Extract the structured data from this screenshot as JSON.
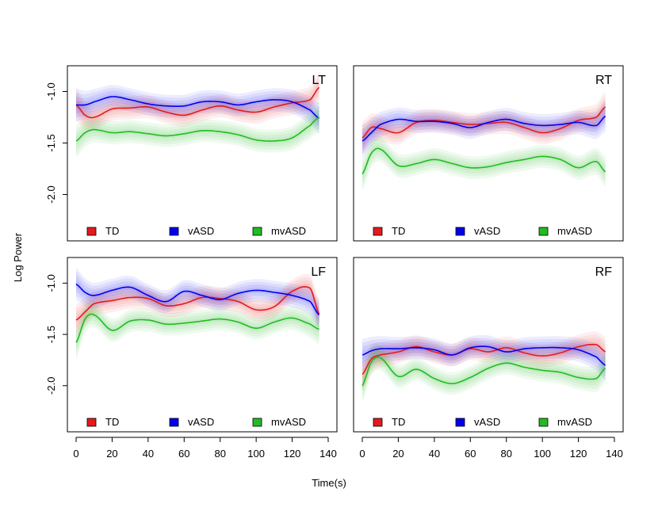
{
  "chart_data": {
    "type": "line",
    "xlabel": "Time(s)",
    "ylabel": "Log Power",
    "xlim": [
      0,
      140
    ],
    "ylim": [
      -2.45,
      -0.75
    ],
    "x_ticks": [
      0,
      20,
      40,
      60,
      80,
      100,
      120,
      140
    ],
    "y_ticks": [
      -2.0,
      -1.5,
      -1.0
    ],
    "y_tick_labels": [
      "-2.0",
      "-1.5",
      "-1.0"
    ],
    "legend": [
      {
        "label": "TD",
        "color": "#e41a1c"
      },
      {
        "label": "vASD",
        "color": "#0000ee"
      },
      {
        "label": "mvASD",
        "color": "#22bb22"
      }
    ],
    "grid": false,
    "shaded_bands": true,
    "panels": [
      {
        "label": "LT",
        "x": [
          0,
          5,
          10,
          20,
          30,
          40,
          50,
          60,
          70,
          80,
          90,
          100,
          110,
          120,
          130,
          135
        ],
        "series": [
          {
            "name": "TD",
            "values": [
              -1.13,
              -1.23,
              -1.25,
              -1.17,
              -1.16,
              -1.15,
              -1.2,
              -1.23,
              -1.18,
              -1.14,
              -1.18,
              -1.2,
              -1.15,
              -1.11,
              -1.08,
              -0.96
            ]
          },
          {
            "name": "vASD",
            "values": [
              -1.13,
              -1.13,
              -1.1,
              -1.05,
              -1.08,
              -1.12,
              -1.14,
              -1.14,
              -1.1,
              -1.1,
              -1.13,
              -1.1,
              -1.08,
              -1.1,
              -1.18,
              -1.26
            ]
          },
          {
            "name": "mvASD",
            "values": [
              -1.48,
              -1.4,
              -1.37,
              -1.4,
              -1.39,
              -1.41,
              -1.43,
              -1.41,
              -1.38,
              -1.39,
              -1.42,
              -1.47,
              -1.48,
              -1.45,
              -1.33,
              -1.25
            ]
          }
        ]
      },
      {
        "label": "RT",
        "x": [
          0,
          5,
          10,
          20,
          30,
          40,
          50,
          60,
          70,
          80,
          90,
          100,
          110,
          120,
          130,
          135
        ],
        "series": [
          {
            "name": "TD",
            "values": [
              -1.45,
              -1.35,
              -1.36,
              -1.4,
              -1.3,
              -1.28,
              -1.3,
              -1.32,
              -1.31,
              -1.3,
              -1.35,
              -1.4,
              -1.36,
              -1.28,
              -1.25,
              -1.15
            ]
          },
          {
            "name": "vASD",
            "values": [
              -1.48,
              -1.4,
              -1.32,
              -1.27,
              -1.29,
              -1.29,
              -1.31,
              -1.35,
              -1.3,
              -1.27,
              -1.31,
              -1.33,
              -1.32,
              -1.3,
              -1.33,
              -1.24
            ]
          },
          {
            "name": "mvASD",
            "values": [
              -1.8,
              -1.6,
              -1.56,
              -1.72,
              -1.7,
              -1.66,
              -1.7,
              -1.74,
              -1.73,
              -1.69,
              -1.66,
              -1.63,
              -1.66,
              -1.74,
              -1.68,
              -1.78
            ]
          }
        ]
      },
      {
        "label": "LF",
        "x": [
          0,
          5,
          10,
          20,
          30,
          40,
          50,
          60,
          70,
          80,
          90,
          100,
          110,
          120,
          130,
          135
        ],
        "series": [
          {
            "name": "TD",
            "values": [
              -1.36,
              -1.28,
              -1.2,
              -1.17,
              -1.14,
              -1.15,
              -1.22,
              -1.2,
              -1.14,
              -1.15,
              -1.18,
              -1.26,
              -1.23,
              -1.08,
              -1.05,
              -1.3
            ]
          },
          {
            "name": "vASD",
            "values": [
              -1.01,
              -1.09,
              -1.12,
              -1.07,
              -1.04,
              -1.12,
              -1.18,
              -1.08,
              -1.12,
              -1.16,
              -1.1,
              -1.07,
              -1.09,
              -1.12,
              -1.18,
              -1.31
            ]
          },
          {
            "name": "mvASD",
            "values": [
              -1.58,
              -1.35,
              -1.31,
              -1.46,
              -1.37,
              -1.36,
              -1.4,
              -1.39,
              -1.37,
              -1.35,
              -1.38,
              -1.44,
              -1.38,
              -1.34,
              -1.4,
              -1.45
            ]
          }
        ]
      },
      {
        "label": "RF",
        "x": [
          0,
          5,
          10,
          20,
          30,
          40,
          50,
          60,
          70,
          80,
          90,
          100,
          110,
          120,
          130,
          135
        ],
        "series": [
          {
            "name": "TD",
            "values": [
              -1.89,
              -1.74,
              -1.7,
              -1.67,
              -1.62,
              -1.67,
              -1.7,
              -1.64,
              -1.67,
              -1.63,
              -1.68,
              -1.71,
              -1.68,
              -1.62,
              -1.6,
              -1.67
            ]
          },
          {
            "name": "vASD",
            "values": [
              -1.7,
              -1.66,
              -1.64,
              -1.64,
              -1.63,
              -1.65,
              -1.7,
              -1.63,
              -1.62,
              -1.67,
              -1.64,
              -1.63,
              -1.63,
              -1.65,
              -1.72,
              -1.8
            ]
          },
          {
            "name": "mvASD",
            "values": [
              -2.0,
              -1.77,
              -1.73,
              -1.91,
              -1.84,
              -1.93,
              -1.98,
              -1.92,
              -1.83,
              -1.78,
              -1.82,
              -1.85,
              -1.87,
              -1.92,
              -1.93,
              -1.83
            ]
          }
        ]
      }
    ]
  }
}
